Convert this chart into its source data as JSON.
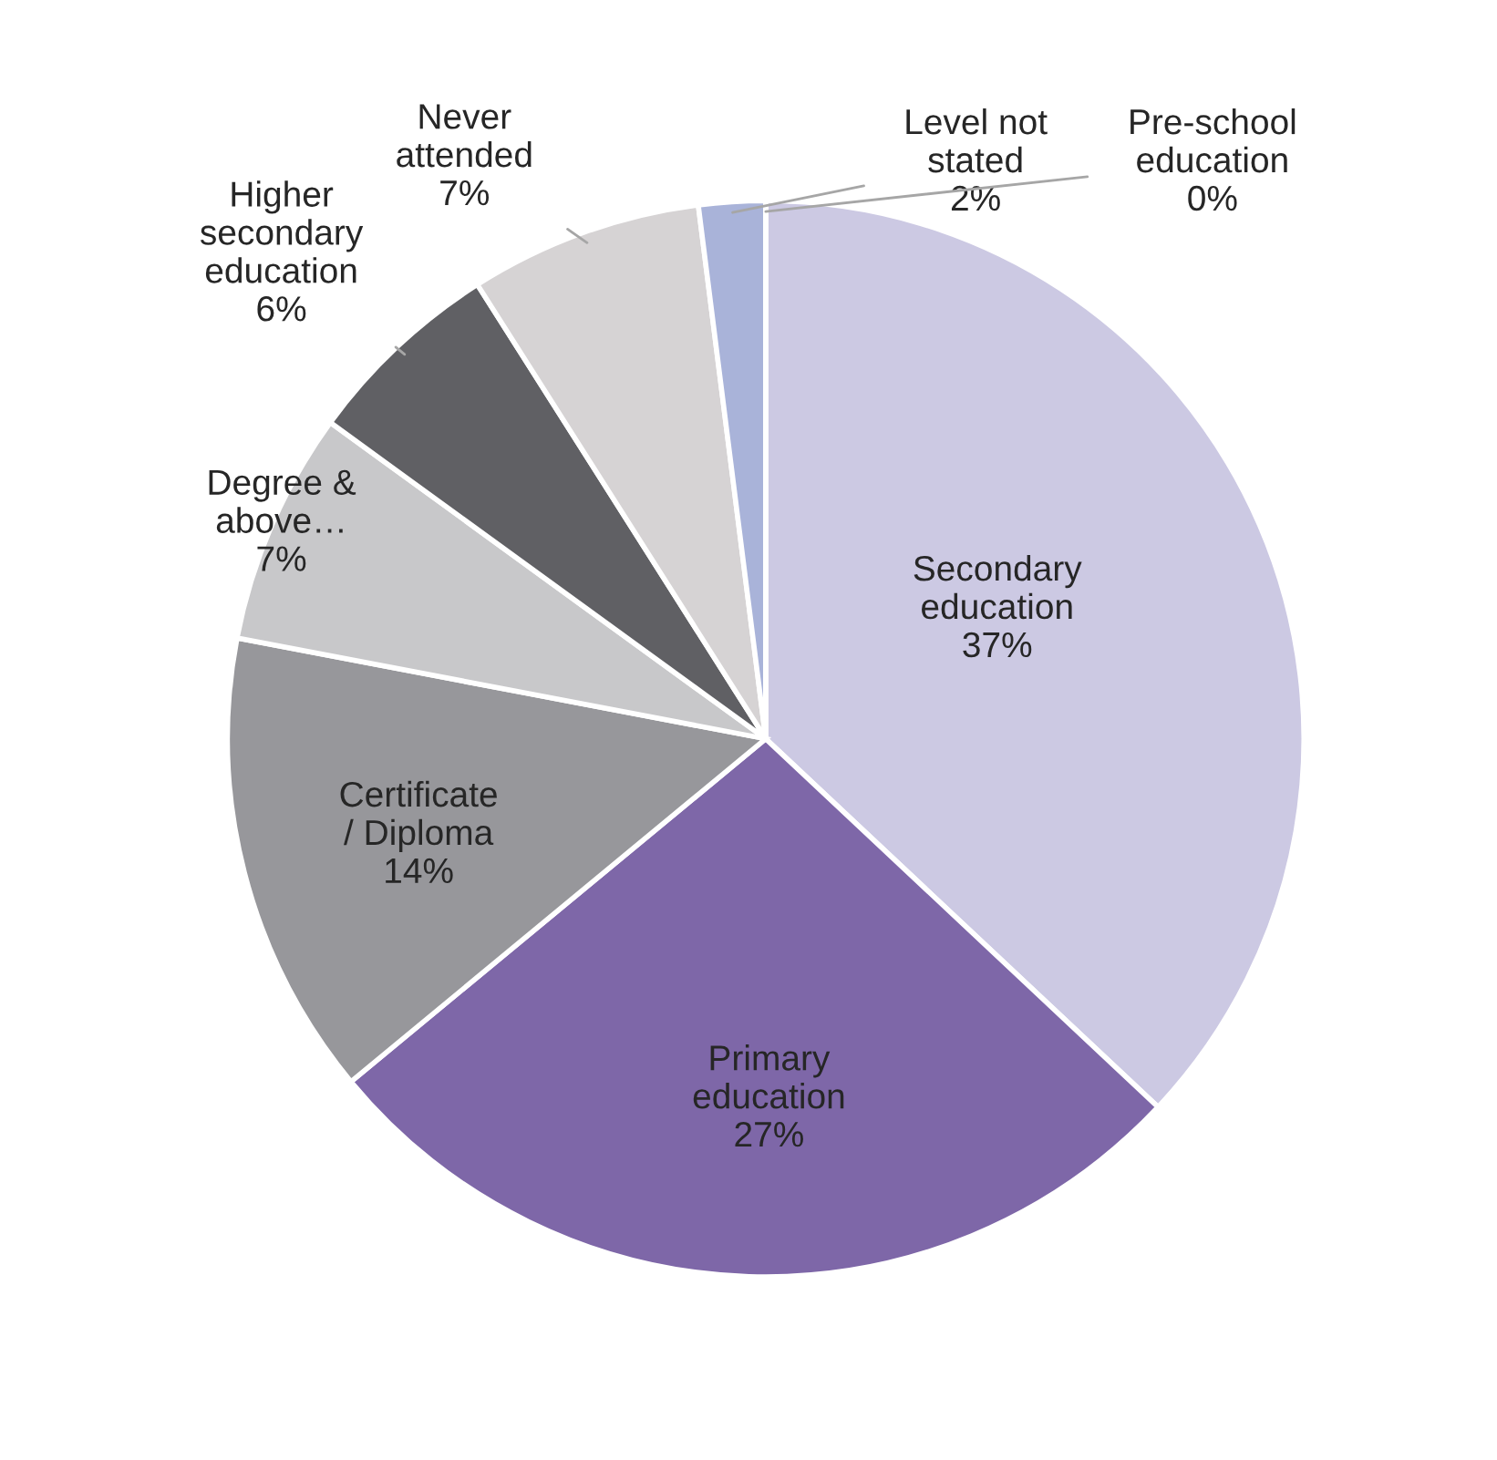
{
  "chart_data": {
    "type": "pie",
    "categories": [
      "Secondary\neducation",
      "Primary\neducation",
      "Certificate\n/ Diploma",
      "Degree &\nabove…",
      "Higher\nsecondary\neducation",
      "Never\nattended",
      "Level not\nstated",
      "Pre-school\neducation"
    ],
    "values": [
      37,
      27,
      14,
      7,
      6,
      7,
      2,
      0
    ],
    "colors": [
      "#ccc9e3",
      "#7e67a8",
      "#97979b",
      "#c8c8ca",
      "#606064",
      "#d6d3d4",
      "#a9b3d9",
      "#c9cde6"
    ],
    "value_labels": [
      "37%",
      "27%",
      "14%",
      "7%",
      "6%",
      "7%",
      "2%",
      "0%"
    ],
    "legend": false
  }
}
